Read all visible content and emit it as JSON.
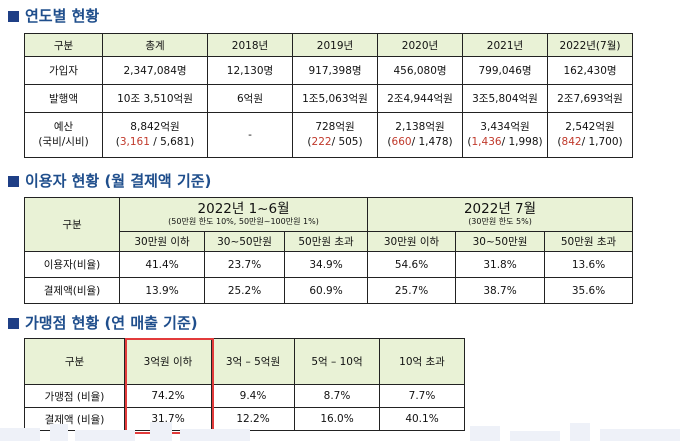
{
  "section1": {
    "title": "연도별 현황",
    "headers": [
      "구분",
      "총계",
      "2018년",
      "2019년",
      "2020년",
      "2021년",
      "2022년(7월)"
    ],
    "rows": [
      {
        "label": "가입자",
        "values": [
          "2,347,084명",
          "12,130명",
          "917,398명",
          "456,080명",
          "799,046명",
          "162,430명"
        ]
      },
      {
        "label": "발행액",
        "values": [
          "10조 3,510억원",
          "6억원",
          "1조5,063억원",
          "2조4,944억원",
          "3조5,804억원",
          "2조7,693억원"
        ]
      }
    ],
    "budget": {
      "label_line1": "예산",
      "label_line2": "(국비/시비)",
      "cells": [
        {
          "amount": "8,842억원",
          "national": "3,161",
          "city": "/ 5,681)"
        },
        {
          "amount": "-",
          "national": "",
          "city": ""
        },
        {
          "amount": "728억원",
          "national": "222",
          "city": "/ 505)"
        },
        {
          "amount": "2,138억원",
          "national": "660",
          "city": "/ 1,478)"
        },
        {
          "amount": "3,434억원",
          "national": "1,436",
          "city": "/ 1,998)"
        },
        {
          "amount": "2,542억원",
          "national": "842",
          "city": "/ 1,700)"
        }
      ]
    }
  },
  "section2": {
    "title": "이용자 현황 (월 결제액 기준)",
    "corner": "구분",
    "group1": {
      "title": "2022년 1~6월",
      "sub": "(50만원 한도 10%, 50만원~100만원 1%)"
    },
    "group2": {
      "title": "2022년 7월",
      "sub": "(30만원 한도 5%)"
    },
    "subheaders": [
      "30만원 이하",
      "30~50만원",
      "50만원 초과",
      "30만원 이하",
      "30~50만원",
      "50만원 초과"
    ],
    "rows": [
      {
        "label": "이용자(비율)",
        "values": [
          "41.4%",
          "23.7%",
          "34.9%",
          "54.6%",
          "31.8%",
          "13.6%"
        ]
      },
      {
        "label": "결제액(비율)",
        "values": [
          "13.9%",
          "25.2%",
          "60.9%",
          "25.7%",
          "38.7%",
          "35.6%"
        ]
      }
    ]
  },
  "section3": {
    "title": "가맹점 현황 (연 매출 기준)",
    "headers": [
      "구분",
      "3억원 이하",
      "3억 – 5억원",
      "5억 – 10억",
      "10억 초과"
    ],
    "rows": [
      {
        "label": "가맹점 (비율)",
        "values": [
          "74.2%",
          "9.4%",
          "8.7%",
          "7.7%"
        ]
      },
      {
        "label": "결제액 (비율)",
        "values": [
          "31.7%",
          "12.2%",
          "16.0%",
          "40.1%"
        ]
      }
    ]
  },
  "colors": {
    "header_bg": "#e9f2d6",
    "title": "#1f4e8c",
    "highlight": "#e23b3b",
    "national": "#c0392b"
  }
}
